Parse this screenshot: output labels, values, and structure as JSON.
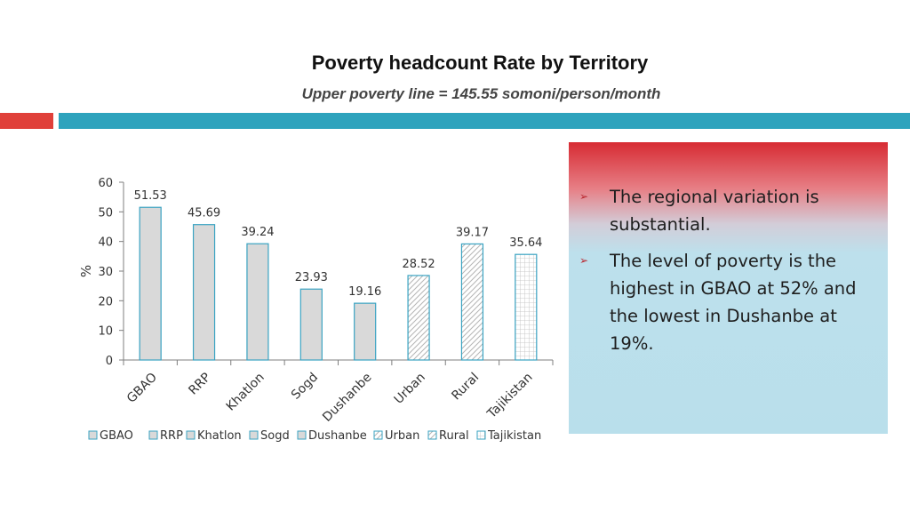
{
  "slide": {
    "title": "Poverty headcount Rate by Territory",
    "subtitle": "Upper poverty line = 145.55 somoni/person/month",
    "colors": {
      "accent_red": "#e0403a",
      "accent_teal": "#2ea3bd",
      "bar_fill": "#d9d9d9",
      "bar_stroke": "#3aa3c2"
    }
  },
  "chart_data": {
    "type": "bar",
    "title": "",
    "xlabel": "",
    "ylabel": "%",
    "ylim": [
      0,
      60
    ],
    "yticks": [
      0,
      10,
      20,
      30,
      40,
      50,
      60
    ],
    "categories": [
      "GBAO",
      "RRP",
      "Khatlon",
      "Sogd",
      "Dushanbe",
      "Urban",
      "Rural",
      "Tajikistan"
    ],
    "values": [
      51.53,
      45.69,
      39.24,
      23.93,
      19.16,
      28.52,
      39.17,
      35.64
    ],
    "value_labels": [
      "51.53",
      "45.69",
      "39.24",
      "23.93",
      "19.16",
      "28.52",
      "39.17",
      "35.64"
    ],
    "patterns": [
      "solid",
      "solid",
      "solid",
      "solid",
      "solid",
      "diagonal",
      "diagonal",
      "grid"
    ],
    "legend": [
      "GBAO",
      "RRP",
      "Khatlon",
      "Sogd",
      "Dushanbe",
      "Urban",
      "Rural",
      "Tajikistan"
    ],
    "legend_position": "bottom",
    "grid": false
  },
  "bullets": [
    {
      "icon": "arrowhead-bullet-icon",
      "text": "The regional variation is substantial."
    },
    {
      "icon": "arrowhead-bullet-icon",
      "text": "The level of poverty is the highest in GBAO at 52% and the lowest in Dushanbe at 19%."
    }
  ]
}
